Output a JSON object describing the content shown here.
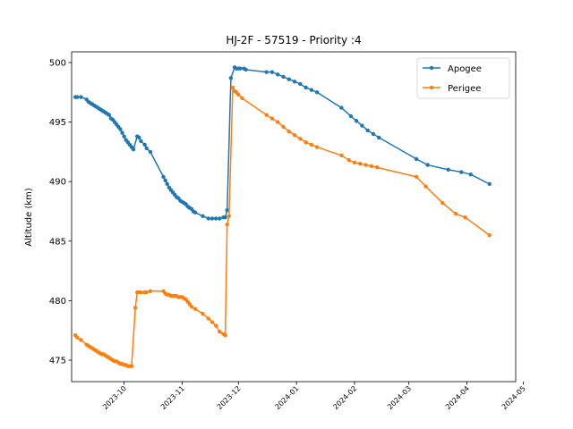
{
  "chart_data": {
    "type": "line",
    "title": "HJ-2F - 57519 - Priority :4",
    "xlabel": "",
    "ylabel": "Altitude (km)",
    "xlim": [
      "2023-09-03",
      "2024-04-27"
    ],
    "ylim": [
      473.2,
      500.9
    ],
    "y_ticks": [
      475,
      480,
      485,
      490,
      495,
      500
    ],
    "x_ticks": [
      "2023-10",
      "2023-11",
      "2023-12",
      "2024-01",
      "2024-02",
      "2024-03",
      "2024-04",
      "2024-05"
    ],
    "legend_position": "top-right",
    "grid": false,
    "series": [
      {
        "name": "Apogee",
        "color": "#1f77b4",
        "points": [
          [
            "2023-09-05",
            497.1
          ],
          [
            "2023-09-06",
            497.1
          ],
          [
            "2023-09-08",
            497.1
          ],
          [
            "2023-09-11",
            496.9
          ],
          [
            "2023-09-12",
            496.7
          ],
          [
            "2023-09-13",
            496.6
          ],
          [
            "2023-09-14",
            496.5
          ],
          [
            "2023-09-15",
            496.4
          ],
          [
            "2023-09-16",
            496.3
          ],
          [
            "2023-09-17",
            496.2
          ],
          [
            "2023-09-18",
            496.1
          ],
          [
            "2023-09-19",
            496.0
          ],
          [
            "2023-09-20",
            495.9
          ],
          [
            "2023-09-21",
            495.8
          ],
          [
            "2023-09-22",
            495.7
          ],
          [
            "2023-09-23",
            495.6
          ],
          [
            "2023-09-24",
            495.3
          ],
          [
            "2023-09-25",
            495.2
          ],
          [
            "2023-09-26",
            495.0
          ],
          [
            "2023-09-27",
            494.8
          ],
          [
            "2023-09-28",
            494.6
          ],
          [
            "2023-09-29",
            494.4
          ],
          [
            "2023-09-30",
            494.1
          ],
          [
            "2023-10-01",
            493.8
          ],
          [
            "2023-10-02",
            493.5
          ],
          [
            "2023-10-03",
            493.3
          ],
          [
            "2023-10-04",
            493.1
          ],
          [
            "2023-10-05",
            492.9
          ],
          [
            "2023-10-06",
            492.7
          ],
          [
            "2023-10-08",
            493.8
          ],
          [
            "2023-10-09",
            493.7
          ],
          [
            "2023-10-10",
            493.4
          ],
          [
            "2023-10-12",
            493.1
          ],
          [
            "2023-10-13",
            492.8
          ],
          [
            "2023-10-15",
            492.5
          ],
          [
            "2023-10-22",
            490.4
          ],
          [
            "2023-10-23",
            490.1
          ],
          [
            "2023-10-24",
            489.8
          ],
          [
            "2023-10-25",
            489.5
          ],
          [
            "2023-10-26",
            489.3
          ],
          [
            "2023-10-27",
            489.1
          ],
          [
            "2023-10-28",
            488.9
          ],
          [
            "2023-10-29",
            488.7
          ],
          [
            "2023-10-30",
            488.6
          ],
          [
            "2023-10-31",
            488.4
          ],
          [
            "2023-11-01",
            488.3
          ],
          [
            "2023-11-02",
            488.2
          ],
          [
            "2023-11-03",
            488.1
          ],
          [
            "2023-11-04",
            487.9
          ],
          [
            "2023-11-05",
            487.8
          ],
          [
            "2023-11-06",
            487.7
          ],
          [
            "2023-11-07",
            487.5
          ],
          [
            "2023-11-08",
            487.4
          ],
          [
            "2023-11-12",
            487.1
          ],
          [
            "2023-11-15",
            486.9
          ],
          [
            "2023-11-17",
            486.9
          ],
          [
            "2023-11-19",
            486.9
          ],
          [
            "2023-11-21",
            486.9
          ],
          [
            "2023-11-23",
            487.0
          ],
          [
            "2023-11-24",
            487.0
          ],
          [
            "2023-11-25",
            487.6
          ],
          [
            "2023-11-27",
            498.7
          ],
          [
            "2023-11-29",
            499.6
          ],
          [
            "2023-11-30",
            499.5
          ],
          [
            "2023-12-01",
            499.5
          ],
          [
            "2023-12-02",
            499.5
          ],
          [
            "2023-12-04",
            499.5
          ],
          [
            "2023-12-05",
            499.4
          ],
          [
            "2023-12-16",
            499.2
          ],
          [
            "2023-12-19",
            499.2
          ],
          [
            "2023-12-22",
            499.0
          ],
          [
            "2023-12-25",
            498.8
          ],
          [
            "2023-12-28",
            498.6
          ],
          [
            "2023-12-31",
            498.4
          ],
          [
            "2024-01-03",
            498.2
          ],
          [
            "2024-01-06",
            497.9
          ],
          [
            "2024-01-09",
            497.7
          ],
          [
            "2024-01-12",
            497.5
          ],
          [
            "2024-01-25",
            496.2
          ],
          [
            "2024-01-30",
            495.5
          ],
          [
            "2024-02-02",
            495.1
          ],
          [
            "2024-02-05",
            494.7
          ],
          [
            "2024-02-08",
            494.3
          ],
          [
            "2024-02-11",
            494.0
          ],
          [
            "2024-02-14",
            493.7
          ],
          [
            "2024-03-05",
            491.9
          ],
          [
            "2024-03-11",
            491.4
          ],
          [
            "2024-03-22",
            491.0
          ],
          [
            "2024-03-29",
            490.8
          ],
          [
            "2024-04-03",
            490.6
          ],
          [
            "2024-04-13",
            489.8
          ]
        ]
      },
      {
        "name": "Perigee",
        "color": "#ff7f0e",
        "points": [
          [
            "2023-09-05",
            477.1
          ],
          [
            "2023-09-06",
            476.9
          ],
          [
            "2023-09-08",
            476.7
          ],
          [
            "2023-09-11",
            476.3
          ],
          [
            "2023-09-12",
            476.2
          ],
          [
            "2023-09-13",
            476.1
          ],
          [
            "2023-09-14",
            476.0
          ],
          [
            "2023-09-15",
            475.9
          ],
          [
            "2023-09-16",
            475.8
          ],
          [
            "2023-09-17",
            475.7
          ],
          [
            "2023-09-18",
            475.6
          ],
          [
            "2023-09-19",
            475.5
          ],
          [
            "2023-09-20",
            475.5
          ],
          [
            "2023-09-21",
            475.4
          ],
          [
            "2023-09-22",
            475.3
          ],
          [
            "2023-09-23",
            475.2
          ],
          [
            "2023-09-24",
            475.1
          ],
          [
            "2023-09-25",
            475.0
          ],
          [
            "2023-09-26",
            474.9
          ],
          [
            "2023-09-27",
            474.9
          ],
          [
            "2023-09-28",
            474.8
          ],
          [
            "2023-09-29",
            474.7
          ],
          [
            "2023-09-30",
            474.7
          ],
          [
            "2023-10-01",
            474.6
          ],
          [
            "2023-10-02",
            474.6
          ],
          [
            "2023-10-03",
            474.5
          ],
          [
            "2023-10-04",
            474.5
          ],
          [
            "2023-10-05",
            474.5
          ],
          [
            "2023-10-07",
            479.4
          ],
          [
            "2023-10-08",
            480.7
          ],
          [
            "2023-10-09",
            480.7
          ],
          [
            "2023-10-10",
            480.7
          ],
          [
            "2023-10-12",
            480.7
          ],
          [
            "2023-10-13",
            480.7
          ],
          [
            "2023-10-15",
            480.8
          ],
          [
            "2023-10-22",
            480.8
          ],
          [
            "2023-10-23",
            480.6
          ],
          [
            "2023-10-24",
            480.5
          ],
          [
            "2023-10-25",
            480.5
          ],
          [
            "2023-10-26",
            480.4
          ],
          [
            "2023-10-27",
            480.4
          ],
          [
            "2023-10-28",
            480.4
          ],
          [
            "2023-10-29",
            480.4
          ],
          [
            "2023-10-30",
            480.3
          ],
          [
            "2023-10-31",
            480.3
          ],
          [
            "2023-11-01",
            480.3
          ],
          [
            "2023-11-02",
            480.2
          ],
          [
            "2023-11-03",
            480.1
          ],
          [
            "2023-11-04",
            479.9
          ],
          [
            "2023-11-05",
            479.7
          ],
          [
            "2023-11-06",
            479.5
          ],
          [
            "2023-11-08",
            479.3
          ],
          [
            "2023-11-12",
            478.9
          ],
          [
            "2023-11-15",
            478.5
          ],
          [
            "2023-11-17",
            478.2
          ],
          [
            "2023-11-19",
            477.9
          ],
          [
            "2023-11-21",
            477.4
          ],
          [
            "2023-11-23",
            477.2
          ],
          [
            "2023-11-24",
            477.1
          ],
          [
            "2023-11-25",
            486.4
          ],
          [
            "2023-11-26",
            487.1
          ],
          [
            "2023-11-28",
            497.9
          ],
          [
            "2023-11-29",
            497.6
          ],
          [
            "2023-11-30",
            497.5
          ],
          [
            "2023-12-01",
            497.3
          ],
          [
            "2023-12-03",
            497.0
          ],
          [
            "2023-12-16",
            495.6
          ],
          [
            "2023-12-19",
            495.3
          ],
          [
            "2023-12-22",
            495.0
          ],
          [
            "2023-12-25",
            494.6
          ],
          [
            "2023-12-28",
            494.2
          ],
          [
            "2023-12-31",
            493.9
          ],
          [
            "2024-01-03",
            493.6
          ],
          [
            "2024-01-06",
            493.3
          ],
          [
            "2024-01-09",
            493.1
          ],
          [
            "2024-01-12",
            492.9
          ],
          [
            "2024-01-25",
            492.2
          ],
          [
            "2024-01-29",
            491.8
          ],
          [
            "2024-02-01",
            491.6
          ],
          [
            "2024-02-04",
            491.5
          ],
          [
            "2024-02-07",
            491.4
          ],
          [
            "2024-02-10",
            491.3
          ],
          [
            "2024-02-13",
            491.2
          ],
          [
            "2024-03-05",
            490.4
          ],
          [
            "2024-03-10",
            489.6
          ],
          [
            "2024-03-19",
            488.2
          ],
          [
            "2024-03-26",
            487.3
          ],
          [
            "2024-03-31",
            487.0
          ],
          [
            "2024-04-13",
            485.5
          ]
        ]
      }
    ]
  }
}
